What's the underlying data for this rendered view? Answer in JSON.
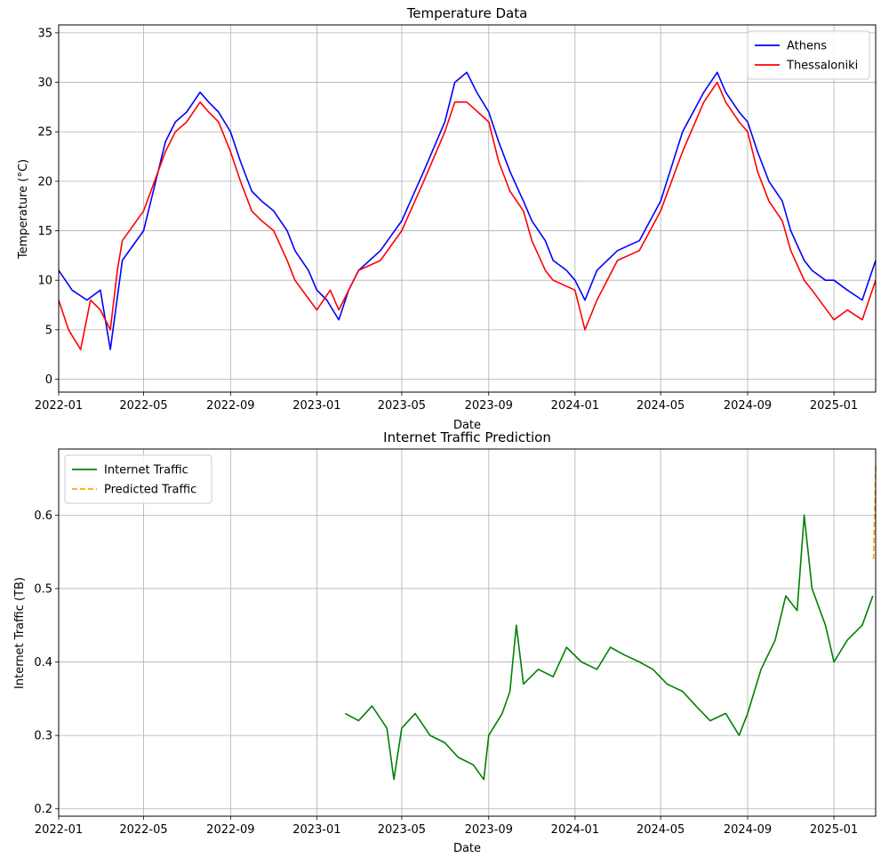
{
  "chart_data": [
    {
      "type": "line",
      "title": "Temperature Data",
      "xlabel": "Date",
      "ylabel": "Temperature (°C)",
      "xlim": [
        "2022-01-01",
        "2025-03-01"
      ],
      "ylim": [
        -1.3,
        35.8
      ],
      "x_ticks": [
        "2022-01",
        "2022-05",
        "2022-09",
        "2023-01",
        "2023-05",
        "2023-09",
        "2024-01",
        "2024-05",
        "2024-09",
        "2025-01"
      ],
      "y_ticks": [
        0,
        5,
        10,
        15,
        20,
        25,
        30,
        35
      ],
      "grid": true,
      "legend_position": "top-right",
      "series": [
        {
          "name": "Athens",
          "color": "#0000ff",
          "points": [
            [
              "2022-01-01",
              11
            ],
            [
              "2022-01-20",
              9
            ],
            [
              "2022-02-10",
              8
            ],
            [
              "2022-03-01",
              9
            ],
            [
              "2022-03-15",
              3
            ],
            [
              "2022-04-01",
              12
            ],
            [
              "2022-05-01",
              15
            ],
            [
              "2022-06-01",
              24
            ],
            [
              "2022-06-15",
              26
            ],
            [
              "2022-07-01",
              27
            ],
            [
              "2022-07-20",
              29
            ],
            [
              "2022-08-01",
              28
            ],
            [
              "2022-08-15",
              27
            ],
            [
              "2022-09-01",
              25
            ],
            [
              "2022-09-15",
              22
            ],
            [
              "2022-10-01",
              19
            ],
            [
              "2022-10-15",
              18
            ],
            [
              "2022-11-01",
              17
            ],
            [
              "2022-11-20",
              15
            ],
            [
              "2022-12-01",
              13
            ],
            [
              "2022-12-20",
              11
            ],
            [
              "2023-01-01",
              9
            ],
            [
              "2023-01-15",
              8
            ],
            [
              "2023-02-01",
              6
            ],
            [
              "2023-02-15",
              9
            ],
            [
              "2023-03-01",
              11
            ],
            [
              "2023-04-01",
              13
            ],
            [
              "2023-05-01",
              16
            ],
            [
              "2023-06-01",
              21
            ],
            [
              "2023-07-01",
              26
            ],
            [
              "2023-07-15",
              30
            ],
            [
              "2023-08-01",
              31
            ],
            [
              "2023-08-15",
              29
            ],
            [
              "2023-09-01",
              27
            ],
            [
              "2023-09-15",
              24
            ],
            [
              "2023-10-01",
              21
            ],
            [
              "2023-10-20",
              18
            ],
            [
              "2023-11-01",
              16
            ],
            [
              "2023-11-20",
              14
            ],
            [
              "2023-12-01",
              12
            ],
            [
              "2023-12-20",
              11
            ],
            [
              "2024-01-01",
              10
            ],
            [
              "2024-01-15",
              8
            ],
            [
              "2024-02-01",
              11
            ],
            [
              "2024-03-01",
              13
            ],
            [
              "2024-04-01",
              14
            ],
            [
              "2024-05-01",
              18
            ],
            [
              "2024-06-01",
              25
            ],
            [
              "2024-07-01",
              29
            ],
            [
              "2024-07-20",
              31
            ],
            [
              "2024-08-01",
              29
            ],
            [
              "2024-08-20",
              27
            ],
            [
              "2024-09-01",
              26
            ],
            [
              "2024-09-15",
              23
            ],
            [
              "2024-10-01",
              20
            ],
            [
              "2024-10-20",
              18
            ],
            [
              "2024-11-01",
              15
            ],
            [
              "2024-11-20",
              12
            ],
            [
              "2024-12-01",
              11
            ],
            [
              "2024-12-20",
              10
            ],
            [
              "2025-01-01",
              10
            ],
            [
              "2025-01-20",
              9
            ],
            [
              "2025-02-10",
              8
            ],
            [
              "2025-03-01",
              12
            ]
          ]
        },
        {
          "name": "Thessaloniki",
          "color": "#ff0000",
          "points": [
            [
              "2022-01-01",
              8
            ],
            [
              "2022-01-15",
              5
            ],
            [
              "2022-02-01",
              3
            ],
            [
              "2022-02-15",
              8
            ],
            [
              "2022-03-01",
              7
            ],
            [
              "2022-03-15",
              5
            ],
            [
              "2022-03-25",
              11
            ],
            [
              "2022-04-01",
              14
            ],
            [
              "2022-05-01",
              17
            ],
            [
              "2022-06-01",
              23
            ],
            [
              "2022-06-15",
              25
            ],
            [
              "2022-07-01",
              26
            ],
            [
              "2022-07-20",
              28
            ],
            [
              "2022-08-01",
              27
            ],
            [
              "2022-08-15",
              26
            ],
            [
              "2022-09-01",
              23
            ],
            [
              "2022-09-15",
              20
            ],
            [
              "2022-10-01",
              17
            ],
            [
              "2022-10-15",
              16
            ],
            [
              "2022-11-01",
              15
            ],
            [
              "2022-11-20",
              12
            ],
            [
              "2022-12-01",
              10
            ],
            [
              "2023-01-01",
              7
            ],
            [
              "2023-01-20",
              9
            ],
            [
              "2023-02-01",
              7
            ],
            [
              "2023-03-01",
              11
            ],
            [
              "2023-04-01",
              12
            ],
            [
              "2023-05-01",
              15
            ],
            [
              "2023-06-01",
              20
            ],
            [
              "2023-07-01",
              25
            ],
            [
              "2023-07-15",
              28
            ],
            [
              "2023-08-01",
              28
            ],
            [
              "2023-09-01",
              26
            ],
            [
              "2023-09-15",
              22
            ],
            [
              "2023-10-01",
              19
            ],
            [
              "2023-10-20",
              17
            ],
            [
              "2023-11-01",
              14
            ],
            [
              "2023-11-20",
              11
            ],
            [
              "2023-12-01",
              10
            ],
            [
              "2024-01-01",
              9
            ],
            [
              "2024-01-15",
              5
            ],
            [
              "2024-02-01",
              8
            ],
            [
              "2024-03-01",
              12
            ],
            [
              "2024-04-01",
              13
            ],
            [
              "2024-05-01",
              17
            ],
            [
              "2024-06-01",
              23
            ],
            [
              "2024-07-01",
              28
            ],
            [
              "2024-07-20",
              30
            ],
            [
              "2024-08-01",
              28
            ],
            [
              "2024-08-20",
              26
            ],
            [
              "2024-09-01",
              25
            ],
            [
              "2024-09-15",
              21
            ],
            [
              "2024-10-01",
              18
            ],
            [
              "2024-10-20",
              16
            ],
            [
              "2024-11-01",
              13
            ],
            [
              "2024-11-20",
              10
            ],
            [
              "2024-12-01",
              9
            ],
            [
              "2025-01-01",
              6
            ],
            [
              "2025-01-20",
              7
            ],
            [
              "2025-02-10",
              6
            ],
            [
              "2025-03-01",
              10
            ]
          ]
        }
      ]
    },
    {
      "type": "line",
      "title": "Internet Traffic Prediction",
      "xlabel": "Date",
      "ylabel": "Internet Traffic (TB)",
      "xlim": [
        "2022-01-01",
        "2025-03-01"
      ],
      "ylim": [
        0.19,
        0.69
      ],
      "x_ticks": [
        "2022-01",
        "2022-05",
        "2022-09",
        "2023-01",
        "2023-05",
        "2023-09",
        "2024-01",
        "2024-05",
        "2024-09",
        "2025-01"
      ],
      "y_ticks": [
        0.2,
        0.3,
        0.4,
        0.5,
        0.6
      ],
      "grid": true,
      "legend_position": "top-left",
      "series": [
        {
          "name": "Internet Traffic",
          "color": "#008000",
          "style": "solid",
          "points": [
            [
              "2023-02-10",
              0.33
            ],
            [
              "2023-03-01",
              0.32
            ],
            [
              "2023-03-20",
              0.34
            ],
            [
              "2023-04-10",
              0.31
            ],
            [
              "2023-04-20",
              0.24
            ],
            [
              "2023-05-01",
              0.31
            ],
            [
              "2023-05-20",
              0.33
            ],
            [
              "2023-06-10",
              0.3
            ],
            [
              "2023-07-01",
              0.29
            ],
            [
              "2023-07-20",
              0.27
            ],
            [
              "2023-08-10",
              0.26
            ],
            [
              "2023-08-25",
              0.24
            ],
            [
              "2023-09-01",
              0.3
            ],
            [
              "2023-09-20",
              0.33
            ],
            [
              "2023-10-01",
              0.36
            ],
            [
              "2023-10-10",
              0.45
            ],
            [
              "2023-10-20",
              0.37
            ],
            [
              "2023-11-10",
              0.39
            ],
            [
              "2023-12-01",
              0.38
            ],
            [
              "2023-12-20",
              0.42
            ],
            [
              "2024-01-10",
              0.4
            ],
            [
              "2024-02-01",
              0.39
            ],
            [
              "2024-02-20",
              0.42
            ],
            [
              "2024-03-10",
              0.41
            ],
            [
              "2024-04-01",
              0.4
            ],
            [
              "2024-04-20",
              0.39
            ],
            [
              "2024-05-10",
              0.37
            ],
            [
              "2024-06-01",
              0.36
            ],
            [
              "2024-06-20",
              0.34
            ],
            [
              "2024-07-10",
              0.32
            ],
            [
              "2024-08-01",
              0.33
            ],
            [
              "2024-08-20",
              0.3
            ],
            [
              "2024-09-01",
              0.33
            ],
            [
              "2024-09-20",
              0.39
            ],
            [
              "2024-10-10",
              0.43
            ],
            [
              "2024-10-25",
              0.49
            ],
            [
              "2024-11-10",
              0.47
            ],
            [
              "2024-11-20",
              0.6
            ],
            [
              "2024-12-01",
              0.5
            ],
            [
              "2024-12-20",
              0.45
            ],
            [
              "2025-01-01",
              0.4
            ],
            [
              "2025-01-20",
              0.43
            ],
            [
              "2025-02-10",
              0.45
            ],
            [
              "2025-02-25",
              0.49
            ]
          ]
        },
        {
          "name": "Predicted Traffic",
          "color": "#ffa500",
          "style": "dashed",
          "points": [
            [
              "2025-02-26",
              0.54
            ],
            [
              "2025-02-27",
              0.58
            ],
            [
              "2025-02-28",
              0.62
            ],
            [
              "2025-03-01",
              0.67
            ]
          ]
        }
      ]
    }
  ]
}
